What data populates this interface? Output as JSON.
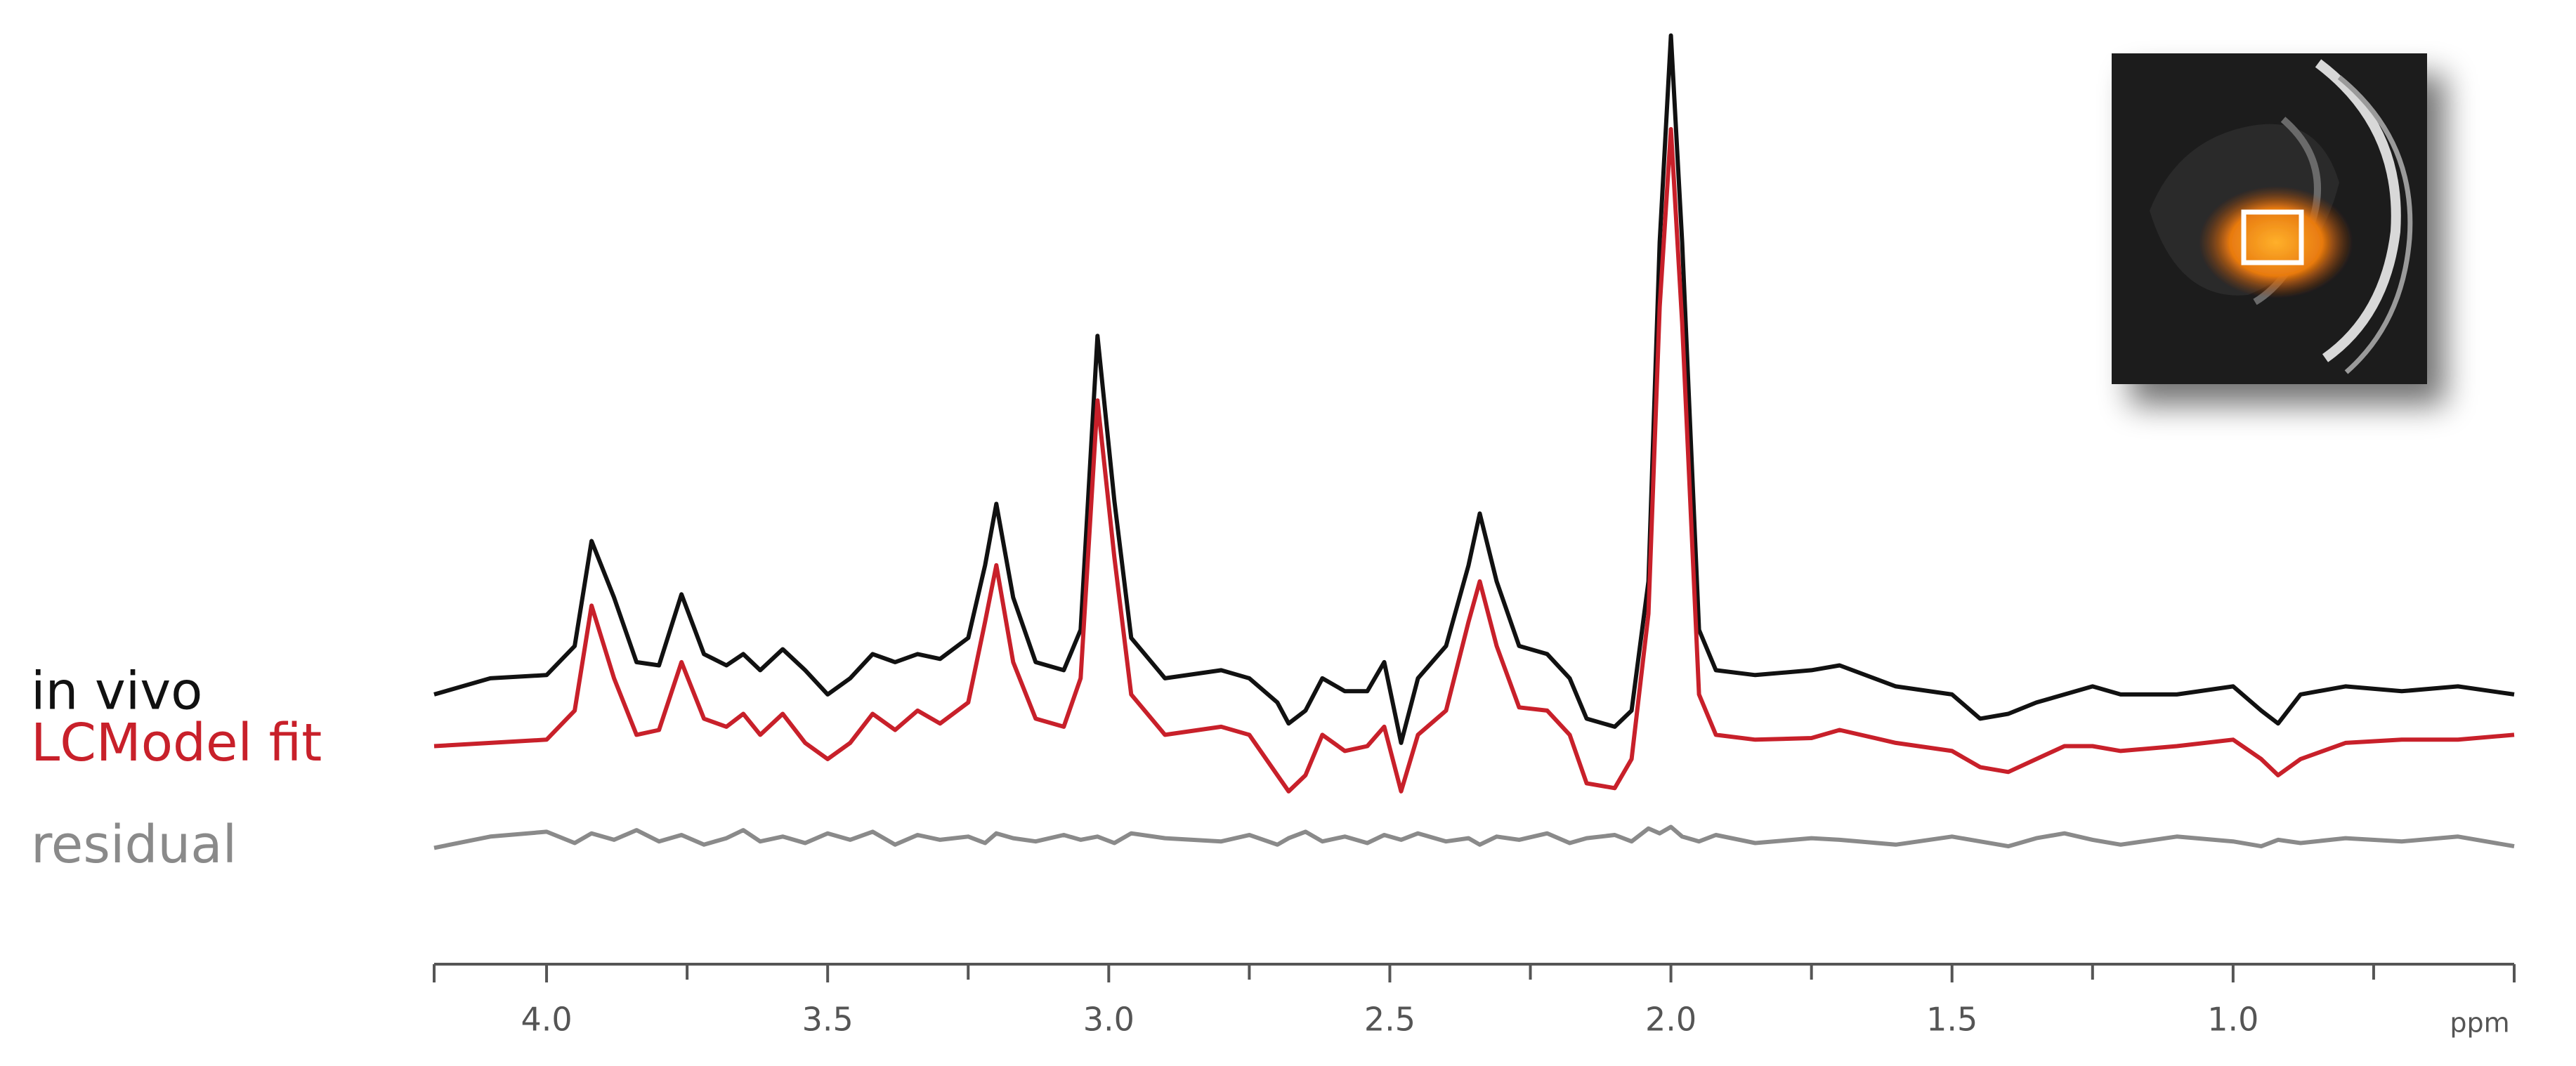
{
  "chart_data": {
    "type": "line",
    "xlabel": "ppm",
    "x": [
      4.2,
      4.1,
      4.0,
      3.95,
      3.92,
      3.88,
      3.84,
      3.8,
      3.76,
      3.72,
      3.68,
      3.65,
      3.62,
      3.58,
      3.54,
      3.5,
      3.46,
      3.42,
      3.38,
      3.34,
      3.3,
      3.25,
      3.22,
      3.2,
      3.17,
      3.13,
      3.08,
      3.05,
      3.02,
      2.99,
      2.96,
      2.9,
      2.8,
      2.75,
      2.7,
      2.68,
      2.65,
      2.62,
      2.58,
      2.54,
      2.51,
      2.48,
      2.45,
      2.4,
      2.36,
      2.34,
      2.31,
      2.27,
      2.22,
      2.18,
      2.15,
      2.1,
      2.07,
      2.04,
      2.02,
      2.0,
      1.98,
      1.95,
      1.92,
      1.85,
      1.75,
      1.7,
      1.6,
      1.5,
      1.45,
      1.4,
      1.35,
      1.3,
      1.25,
      1.2,
      1.1,
      1.0,
      0.95,
      0.92,
      0.88,
      0.8,
      0.7,
      0.6,
      0.5
    ],
    "series": [
      {
        "name": "in vivo",
        "color": "#111111",
        "values": [
          167,
          177,
          179,
          197,
          262,
          227,
          187,
          185,
          229,
          192,
          185,
          192,
          182,
          195,
          182,
          167,
          177,
          192,
          187,
          192,
          189,
          202,
          247,
          285,
          227,
          187,
          182,
          207,
          389,
          287,
          202,
          177,
          182,
          177,
          162,
          149,
          157,
          177,
          169,
          169,
          187,
          137,
          177,
          197,
          247,
          279,
          237,
          197,
          192,
          177,
          152,
          147,
          157,
          237,
          447,
          575,
          447,
          207,
          182,
          179,
          182,
          185,
          172,
          167,
          152,
          155,
          162,
          167,
          172,
          167,
          167,
          172,
          157,
          149,
          167,
          172,
          169,
          172,
          167
        ]
      },
      {
        "name": "LCModel fit",
        "color": "#c8202a",
        "values": [
          135,
          137,
          139,
          157,
          222,
          177,
          142,
          145,
          187,
          152,
          147,
          155,
          142,
          155,
          137,
          127,
          137,
          155,
          145,
          157,
          149,
          162,
          212,
          247,
          187,
          152,
          147,
          177,
          349,
          252,
          167,
          142,
          147,
          142,
          117,
          107,
          117,
          142,
          132,
          135,
          147,
          107,
          142,
          157,
          212,
          237,
          197,
          159,
          157,
          142,
          112,
          109,
          127,
          217,
          407,
          517,
          397,
          167,
          142,
          139,
          140,
          145,
          137,
          132,
          122,
          119,
          127,
          135,
          135,
          132,
          135,
          139,
          127,
          117,
          127,
          137,
          139,
          139,
          142
        ]
      },
      {
        "name": "residual",
        "color": "#8a8a8a",
        "values": [
          72,
          79,
          82,
          75,
          81,
          77,
          83,
          76,
          80,
          74,
          78,
          83,
          76,
          79,
          75,
          81,
          77,
          82,
          74,
          80,
          77,
          79,
          75,
          81,
          78,
          76,
          80,
          77,
          79,
          75,
          81,
          78,
          76,
          80,
          74,
          78,
          82,
          76,
          79,
          75,
          80,
          77,
          81,
          76,
          78,
          74,
          79,
          77,
          81,
          75,
          78,
          80,
          76,
          84,
          81,
          85,
          79,
          76,
          80,
          75,
          78,
          77,
          74,
          79,
          76,
          73,
          78,
          81,
          77,
          74,
          79,
          76,
          73,
          77,
          75,
          78,
          76,
          79,
          73
        ]
      }
    ],
    "xlim": [
      4.2,
      0.5
    ],
    "xticks": [
      {
        "value": 4,
        "label": "4.0"
      },
      3.5,
      {
        "value": 3,
        "label": "3.0"
      },
      2.5,
      {
        "value": 2,
        "label": "2.0"
      },
      1.5,
      {
        "value": 1,
        "label": "1.0"
      }
    ],
    "xminorticks": [
      3.75,
      3.25,
      2.75,
      2.25,
      1.75,
      1.25,
      0.75
    ],
    "ylim": [
      0,
      580
    ],
    "legend": "left"
  }
}
